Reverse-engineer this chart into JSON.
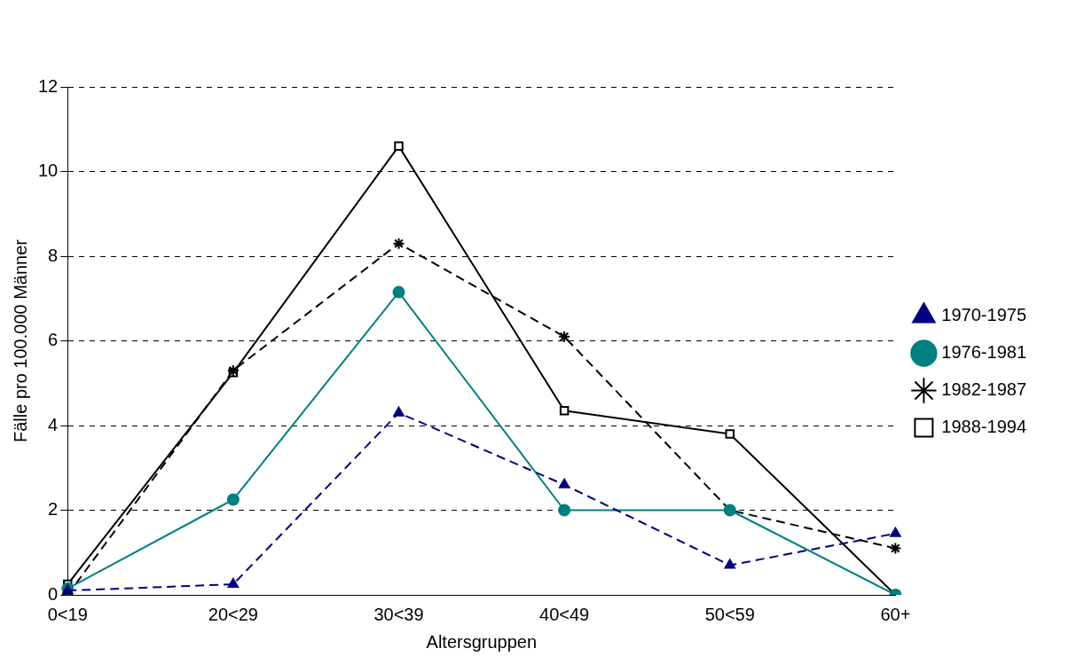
{
  "chart_data": {
    "type": "line",
    "xlabel": "Altersgruppen",
    "ylabel": "Fälle pro 100.000 Männer",
    "categories": [
      "0<19",
      "20<29",
      "30<39",
      "40<49",
      "50<59",
      "60+"
    ],
    "series": [
      {
        "name": "1970-1975",
        "color": "#000080",
        "marker": "triangle",
        "line_style": "dashed",
        "values": [
          0.1,
          0.25,
          4.3,
          2.6,
          0.7,
          1.45
        ]
      },
      {
        "name": "1976-1981",
        "color": "#008080",
        "marker": "circle",
        "line_style": "solid",
        "values": [
          0.15,
          2.25,
          7.15,
          2.0,
          2.0,
          0
        ]
      },
      {
        "name": "1982-1987",
        "color": "#000000",
        "marker": "cross",
        "line_style": "dashed",
        "values": [
          0,
          5.3,
          8.3,
          6.1,
          2.0,
          1.1
        ]
      },
      {
        "name": "1988-1994",
        "color": "#000000",
        "marker": "square",
        "line_style": "solid",
        "values": [
          0.25,
          5.25,
          10.6,
          4.35,
          3.8,
          0
        ]
      }
    ],
    "ylim": [
      0,
      12
    ],
    "yticks": [
      0,
      2,
      4,
      6,
      8,
      10,
      12
    ],
    "grid": "y",
    "legend": "right"
  }
}
